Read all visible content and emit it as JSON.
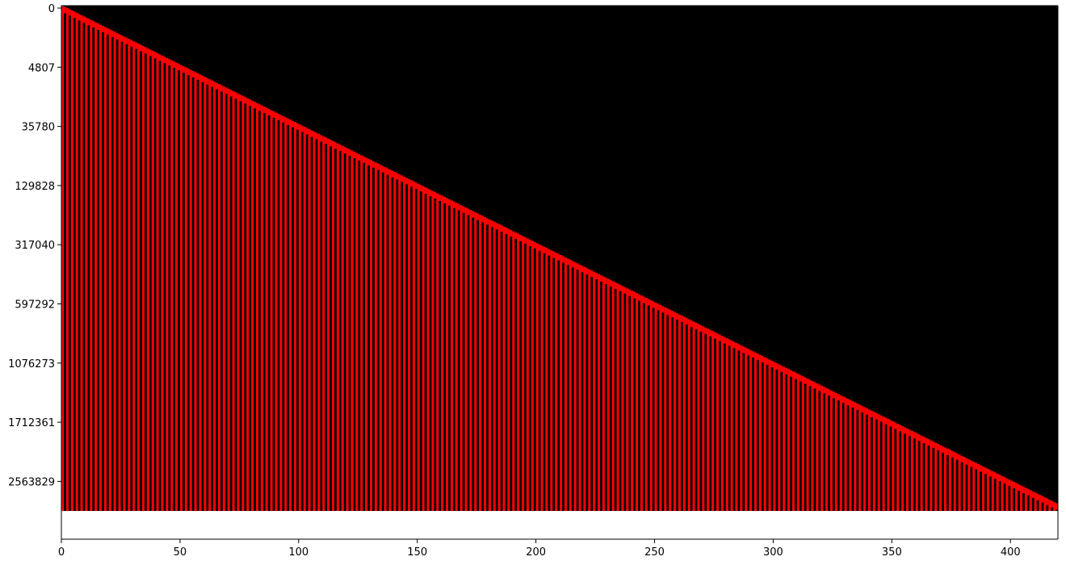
{
  "chart_data": {
    "type": "heatmap",
    "title": "",
    "xlabel": "",
    "ylabel": "",
    "xlim": [
      0,
      420
    ],
    "x_ticks": [
      0,
      50,
      100,
      150,
      200,
      250,
      300,
      350,
      400
    ],
    "y_tick_labels": [
      "0",
      "4807",
      "35780",
      "129828",
      "317040",
      "597292",
      "1076273",
      "1712361",
      "2563829"
    ],
    "cmap": [
      "#000000",
      "#ff0000"
    ],
    "background_color": "#000000",
    "filled_color": "#ff0000",
    "grid": false,
    "legend": "none",
    "description_of_pattern": "triangular staircase: columns filled from top-left to bottom-right, alternating red/black vertical stripes"
  },
  "colors": {
    "axis": "#000000",
    "page": "#ffffff"
  }
}
